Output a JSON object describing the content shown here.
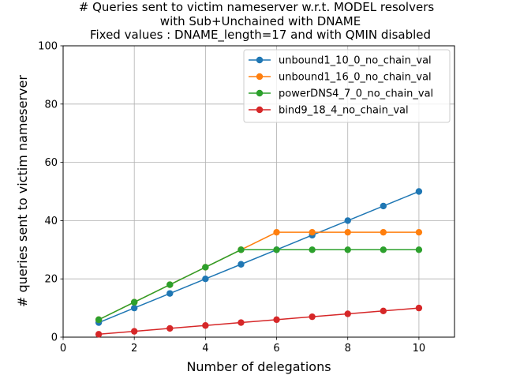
{
  "chart_data": {
    "type": "line",
    "title": [
      "# Queries sent to victim nameserver w.r.t. MODEL resolvers",
      "with Sub+Unchained with DNAME",
      "Fixed values : DNAME_length=17 and  with QMIN disabled"
    ],
    "xlabel": "Number of delegations",
    "ylabel": "# queries sent to victim nameserver",
    "xlim": [
      0,
      11
    ],
    "ylim": [
      0,
      100
    ],
    "xticks": [
      0,
      2,
      4,
      6,
      8,
      10
    ],
    "yticks": [
      0,
      20,
      40,
      60,
      80,
      100
    ],
    "grid": true,
    "legend_position": "top-right",
    "x": [
      1,
      2,
      3,
      4,
      5,
      6,
      7,
      8,
      9,
      10
    ],
    "series": [
      {
        "name": "unbound1_10_0_no_chain_val",
        "color": "#1f77b4",
        "values": [
          5,
          10,
          15,
          20,
          25,
          30,
          35,
          40,
          45,
          50
        ]
      },
      {
        "name": "unbound1_16_0_no_chain_val",
        "color": "#ff7f0e",
        "values": [
          6,
          12,
          18,
          24,
          30,
          36,
          36,
          36,
          36,
          36
        ]
      },
      {
        "name": "powerDNS4_7_0_no_chain_val",
        "color": "#2ca02c",
        "values": [
          6,
          12,
          18,
          24,
          30,
          30,
          30,
          30,
          30,
          30
        ]
      },
      {
        "name": "bind9_18_4_no_chain_val",
        "color": "#d62728",
        "values": [
          1,
          2,
          3,
          4,
          5,
          6,
          7,
          8,
          9,
          10
        ]
      }
    ]
  }
}
